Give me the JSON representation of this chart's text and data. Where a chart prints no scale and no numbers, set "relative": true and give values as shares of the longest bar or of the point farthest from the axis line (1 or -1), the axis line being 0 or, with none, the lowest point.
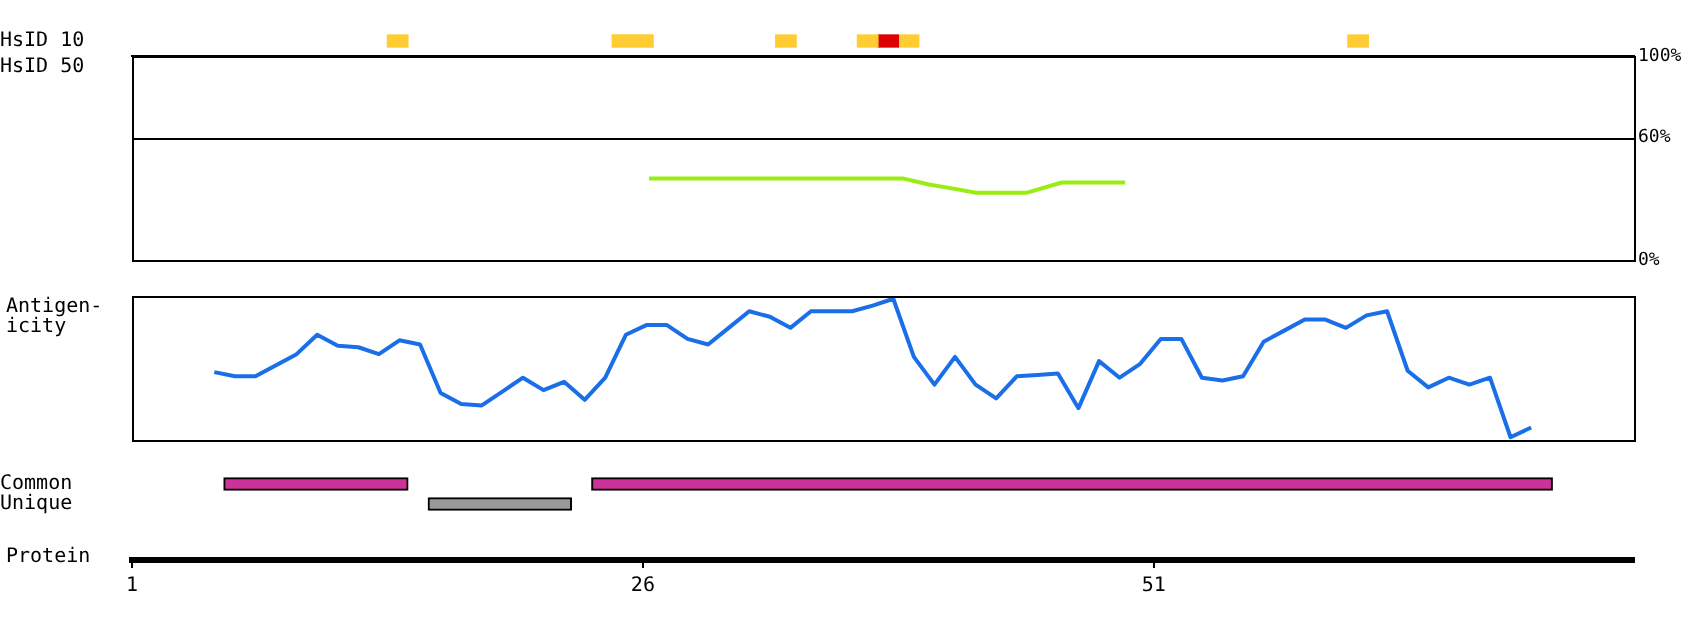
{
  "chart_data": [
    {
      "type": "bar",
      "orientation": "horizontal",
      "categories": [
        "HsID 10",
        "HsID 50"
      ],
      "xlim": [
        1,
        74.5
      ],
      "tick_labels": "y",
      "series": [
        {
          "color": "#ffcc33",
          "values": [
            1,
            null
          ],
          "base": [
            13.5,
            null
          ]
        },
        {
          "color": "#ffcc33",
          "values": [
            2,
            null
          ],
          "base": [
            24.5,
            null
          ]
        },
        {
          "color": "#ffcc33",
          "values": [
            1,
            null
          ],
          "base": [
            32.5,
            null
          ]
        },
        {
          "color": "#ffcc33",
          "values": [
            1,
            null
          ],
          "base": [
            36.5,
            null
          ]
        },
        {
          "color": "#dd0000",
          "values": [
            1,
            null
          ],
          "base": [
            37.5,
            null
          ]
        },
        {
          "color": "#ffcc33",
          "values": [
            1,
            null
          ],
          "base": [
            38.5,
            null
          ]
        },
        {
          "color": "#ffcc33",
          "values": [
            1,
            null
          ],
          "base": [
            60.5,
            null
          ]
        }
      ]
    },
    {
      "type": "line",
      "xlim": [
        1,
        74.5
      ],
      "ylim": [
        0,
        100
      ],
      "yticks": [
        {
          "value": 0,
          "label": "0%"
        },
        {
          "value": 60,
          "label": "60%"
        },
        {
          "value": 100,
          "label": "100%"
        }
      ],
      "tick_labels": "y",
      "ref_lines": [
        {
          "axis": "y",
          "value": 60,
          "color": "#000000"
        }
      ],
      "x": [
        26.3,
        38.7,
        40,
        41.2,
        42.3,
        44.8,
        46.5,
        49.6
      ],
      "series": [
        {
          "color": "#99ee11",
          "values": [
            40,
            40,
            37,
            35,
            33,
            33,
            38,
            38
          ]
        }
      ]
    },
    {
      "type": "line",
      "relative": true,
      "ylabel": "Antigen-\nicity",
      "tick_labels": false,
      "categories": [
        null,
        null,
        null,
        null,
        null,
        null,
        null,
        null,
        null,
        null,
        null,
        null,
        null,
        null,
        null,
        null,
        null,
        null,
        null,
        null,
        null,
        null,
        null,
        null,
        null,
        null,
        null,
        null,
        null,
        null,
        null,
        null,
        null,
        null,
        null,
        null,
        null,
        null,
        null,
        null,
        null,
        null,
        null,
        null,
        null,
        null,
        null,
        null,
        null,
        null,
        null,
        null,
        null,
        null,
        null,
        null,
        null,
        null,
        null,
        null,
        null,
        null,
        null,
        null,
        null,
        null,
        null,
        null,
        null,
        null,
        null,
        null,
        null,
        null
      ],
      "series": [
        {
          "color": "#1a6fe8",
          "values": [
            null,
            null,
            null,
            null,
            0.47,
            0.44,
            0.44,
            0.52,
            0.6,
            0.74,
            0.66,
            0.65,
            0.6,
            0.7,
            0.67,
            0.32,
            0.24,
            0.23,
            0.33,
            0.43,
            0.34,
            0.4,
            0.27,
            0.43,
            0.74,
            0.81,
            0.81,
            0.71,
            0.67,
            0.79,
            0.91,
            0.87,
            0.79,
            0.91,
            0.91,
            0.91,
            0.95,
            1,
            0.58,
            0.38,
            0.58,
            0.38,
            0.28,
            0.44,
            0.45,
            0.46,
            0.21,
            0.55,
            0.43,
            0.53,
            0.71,
            0.71,
            0.43,
            0.41,
            0.44,
            0.69,
            0.77,
            0.85,
            0.85,
            0.79,
            0.88,
            0.91,
            0.48,
            0.36,
            0.43,
            0.38,
            0.43,
            0,
            0.07,
            null,
            null,
            null,
            null,
            null
          ]
        }
      ]
    },
    {
      "type": "bar",
      "orientation": "horizontal",
      "categories": [
        "Common",
        "Unique"
      ],
      "xlabel": "Protein",
      "xlim": [
        1,
        74.5
      ],
      "xticks": [
        1,
        26,
        51
      ],
      "series": [
        {
          "color": "#cc3399",
          "values": [
            9,
            null
          ],
          "base": [
            5.5,
            null
          ]
        },
        {
          "color": "#cc3399",
          "values": [
            47,
            null
          ],
          "base": [
            23.5,
            null
          ]
        },
        {
          "color": "#999999",
          "values": [
            null,
            7
          ],
          "base": [
            null,
            15.5
          ]
        }
      ]
    }
  ]
}
